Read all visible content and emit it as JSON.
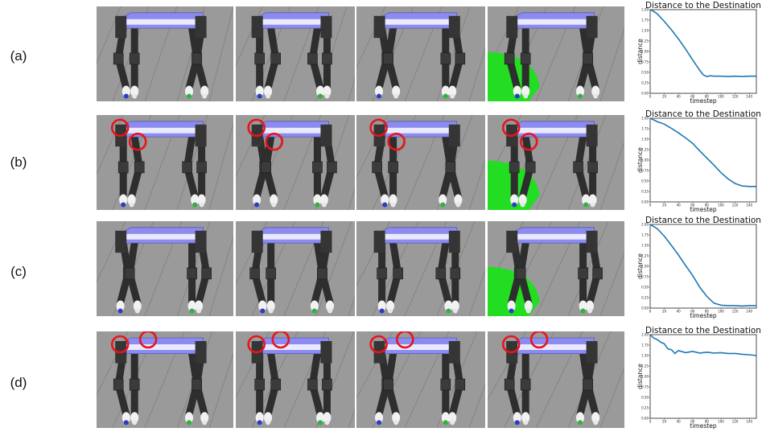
{
  "rows": [
    {
      "label": "(a)",
      "frames": [
        {
          "circles": [],
          "green": false
        },
        {
          "circles": [],
          "green": false
        },
        {
          "circles": [],
          "green": false
        },
        {
          "circles": [],
          "green": true
        }
      ]
    },
    {
      "label": "(b)",
      "frames": [
        {
          "circles": [
            "front-top",
            "front-mid"
          ],
          "green": false
        },
        {
          "circles": [
            "front-top",
            "front-mid"
          ],
          "green": false
        },
        {
          "circles": [
            "front-top",
            "front-mid"
          ],
          "green": false
        },
        {
          "circles": [
            "front-top",
            "front-mid"
          ],
          "green": true
        }
      ]
    },
    {
      "label": "(c)",
      "frames": [
        {
          "circles": [],
          "green": false
        },
        {
          "circles": [],
          "green": false
        },
        {
          "circles": [],
          "green": false
        },
        {
          "circles": [],
          "green": true
        }
      ]
    },
    {
      "label": "(d)",
      "frames": [
        {
          "circles": [
            "front-top",
            "rear-top"
          ],
          "green": false
        },
        {
          "circles": [
            "front-top",
            "rear-top"
          ],
          "green": false
        },
        {
          "circles": [
            "front-top",
            "rear-top"
          ],
          "green": false
        },
        {
          "circles": [
            "front-top",
            "rear-top"
          ],
          "green": false
        }
      ]
    }
  ],
  "colors": {
    "line": "#1f77b4",
    "circle": "#e8141c",
    "ground": "#9a9a9a",
    "body": "#8c8cf0",
    "green": "#22dd22"
  },
  "chart_data": [
    {
      "type": "line",
      "title": "Distance to the Destination",
      "xlabel": "timestep",
      "ylabel": "distance",
      "xlim": [
        0,
        150
      ],
      "ylim": [
        0,
        2.0
      ],
      "xticks": [
        "0",
        "20",
        "40",
        "60",
        "80",
        "100",
        "120",
        "140"
      ],
      "yticks": [
        "0.00",
        "0.25",
        "0.50",
        "0.75",
        "1.00",
        "1.25",
        "1.50",
        "1.75",
        "2.00"
      ],
      "series": [
        {
          "x": [
            0,
            5,
            10,
            20,
            30,
            40,
            50,
            60,
            70,
            75,
            80,
            85,
            90,
            100,
            110,
            120,
            130,
            140,
            150
          ],
          "y": [
            2.0,
            1.96,
            1.9,
            1.72,
            1.52,
            1.3,
            1.06,
            0.8,
            0.55,
            0.44,
            0.4,
            0.42,
            0.41,
            0.41,
            0.4,
            0.41,
            0.4,
            0.41,
            0.41
          ]
        }
      ]
    },
    {
      "type": "line",
      "title": "Distance to the Destination",
      "xlabel": "timestep",
      "ylabel": "distance",
      "xlim": [
        0,
        150
      ],
      "ylim": [
        0,
        2.0
      ],
      "xticks": [
        "0",
        "20",
        "40",
        "60",
        "80",
        "100",
        "120",
        "140"
      ],
      "yticks": [
        "0.00",
        "0.25",
        "0.50",
        "0.75",
        "1.00",
        "1.25",
        "1.50",
        "1.75",
        "2.00"
      ],
      "series": [
        {
          "x": [
            0,
            10,
            20,
            30,
            40,
            50,
            60,
            70,
            80,
            90,
            100,
            110,
            120,
            130,
            140,
            150
          ],
          "y": [
            2.0,
            1.92,
            1.86,
            1.76,
            1.65,
            1.53,
            1.4,
            1.22,
            1.05,
            0.88,
            0.7,
            0.55,
            0.44,
            0.38,
            0.37,
            0.37
          ]
        }
      ]
    },
    {
      "type": "line",
      "title": "Distance to the Destination",
      "xlabel": "timestep",
      "ylabel": "distance",
      "xlim": [
        0,
        150
      ],
      "ylim": [
        0,
        2.0
      ],
      "xticks": [
        "0",
        "20",
        "40",
        "60",
        "80",
        "100",
        "120",
        "140"
      ],
      "yticks": [
        "0.00",
        "0.25",
        "0.50",
        "0.75",
        "1.00",
        "1.25",
        "1.50",
        "1.75",
        "2.00"
      ],
      "series": [
        {
          "x": [
            0,
            10,
            20,
            30,
            40,
            50,
            60,
            70,
            80,
            90,
            100,
            110,
            120,
            130,
            140,
            150
          ],
          "y": [
            2.0,
            1.9,
            1.72,
            1.5,
            1.27,
            1.02,
            0.78,
            0.5,
            0.28,
            0.12,
            0.07,
            0.06,
            0.06,
            0.05,
            0.06,
            0.06
          ]
        }
      ]
    },
    {
      "type": "line",
      "title": "Distance to the Destination",
      "xlabel": "timestep",
      "ylabel": "distance",
      "xlim": [
        0,
        150
      ],
      "ylim": [
        0,
        2.0
      ],
      "xticks": [
        "0",
        "20",
        "40",
        "60",
        "80",
        "100",
        "120",
        "140"
      ],
      "yticks": [
        "0.00",
        "0.25",
        "0.50",
        "0.75",
        "1.00",
        "1.25",
        "1.50",
        "1.75",
        "2.00"
      ],
      "series": [
        {
          "x": [
            0,
            5,
            10,
            15,
            20,
            25,
            30,
            35,
            40,
            50,
            60,
            70,
            80,
            90,
            100,
            110,
            120,
            130,
            140,
            150
          ],
          "y": [
            2.0,
            1.92,
            1.88,
            1.82,
            1.78,
            1.66,
            1.64,
            1.55,
            1.62,
            1.57,
            1.6,
            1.56,
            1.58,
            1.56,
            1.57,
            1.55,
            1.55,
            1.53,
            1.52,
            1.5
          ]
        }
      ]
    }
  ]
}
